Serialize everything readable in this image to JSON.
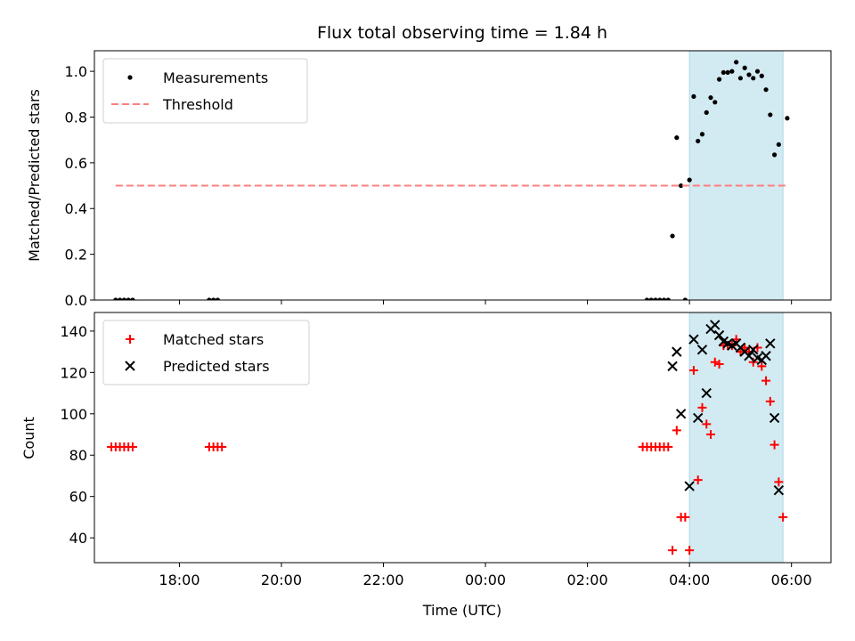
{
  "chart_data": [
    {
      "type": "scatter",
      "title": "Flux total observing time = 1.84 h",
      "xlabel": "",
      "ylabel": "Matched/Predicted stars",
      "ylim": [
        0,
        1.09
      ],
      "yticks": [
        0.0,
        0.2,
        0.4,
        0.6,
        0.8,
        1.0
      ],
      "ytick_labels": [
        "0.0",
        "0.2",
        "0.4",
        "0.6",
        "0.8",
        "1.0"
      ],
      "shaded_interval": [
        "04:00",
        "05:50"
      ],
      "shade_color": "#add8e6",
      "legend_position": "upper-left",
      "series": [
        {
          "name": "Measurements",
          "marker": "dot",
          "color": "#000000",
          "points": [
            [
              "16:45",
              0
            ],
            [
              "16:50",
              0
            ],
            [
              "16:55",
              0
            ],
            [
              "17:00",
              0
            ],
            [
              "17:05",
              0
            ],
            [
              "18:35",
              0
            ],
            [
              "18:40",
              0
            ],
            [
              "18:45",
              0
            ],
            [
              "03:10",
              0
            ],
            [
              "03:15",
              0
            ],
            [
              "03:20",
              0
            ],
            [
              "03:25",
              0
            ],
            [
              "03:30",
              0
            ],
            [
              "03:35",
              0
            ],
            [
              "03:40",
              0.28
            ],
            [
              "03:45",
              0.71
            ],
            [
              "03:50",
              0.5
            ],
            [
              "03:55",
              0.0
            ],
            [
              "04:00",
              0.525
            ],
            [
              "04:05",
              0.89
            ],
            [
              "04:10",
              0.695
            ],
            [
              "04:15",
              0.725
            ],
            [
              "04:20",
              0.82
            ],
            [
              "04:25",
              0.885
            ],
            [
              "04:30",
              0.865
            ],
            [
              "04:35",
              0.965
            ],
            [
              "04:40",
              0.995
            ],
            [
              "04:45",
              0.995
            ],
            [
              "04:50",
              1.0
            ],
            [
              "04:55",
              1.04
            ],
            [
              "05:00",
              0.97
            ],
            [
              "05:05",
              1.015
            ],
            [
              "05:10",
              0.985
            ],
            [
              "05:15",
              0.97
            ],
            [
              "05:20",
              1.0
            ],
            [
              "05:25",
              0.98
            ],
            [
              "05:30",
              0.92
            ],
            [
              "05:35",
              0.81
            ],
            [
              "05:40",
              0.635
            ],
            [
              "05:45",
              0.68
            ],
            [
              "05:55",
              0.795
            ]
          ]
        },
        {
          "name": "Threshold",
          "marker": "dashed-line",
          "color": "#ff7f7f",
          "points": [
            [
              "16:45",
              0.5
            ],
            [
              "05:55",
              0.5
            ]
          ]
        }
      ]
    },
    {
      "type": "scatter",
      "title": "",
      "xlabel": "Time (UTC)",
      "ylabel": "Count",
      "ylim": [
        28,
        149
      ],
      "yticks": [
        40,
        60,
        80,
        100,
        120,
        140
      ],
      "ytick_labels": [
        "40",
        "60",
        "80",
        "100",
        "120",
        "140"
      ],
      "x_range": [
        "16:20",
        "06:25"
      ],
      "xticks": [
        "18:00",
        "20:00",
        "22:00",
        "00:00",
        "02:00",
        "04:00",
        "06:00"
      ],
      "shaded_interval": [
        "04:00",
        "05:50"
      ],
      "shade_color": "#add8e6",
      "legend_position": "upper-left",
      "series": [
        {
          "name": "Matched stars",
          "marker": "plus",
          "color": "#ff0000",
          "points": [
            [
              "16:40",
              84
            ],
            [
              "16:45",
              84
            ],
            [
              "16:50",
              84
            ],
            [
              "16:55",
              84
            ],
            [
              "17:00",
              84
            ],
            [
              "17:05",
              84
            ],
            [
              "18:35",
              84
            ],
            [
              "18:40",
              84
            ],
            [
              "18:45",
              84
            ],
            [
              "18:50",
              84
            ],
            [
              "03:05",
              84
            ],
            [
              "03:10",
              84
            ],
            [
              "03:15",
              84
            ],
            [
              "03:20",
              84
            ],
            [
              "03:25",
              84
            ],
            [
              "03:30",
              84
            ],
            [
              "03:35",
              84
            ],
            [
              "03:40",
              34
            ],
            [
              "03:45",
              92
            ],
            [
              "03:50",
              50
            ],
            [
              "03:55",
              50
            ],
            [
              "04:00",
              34
            ],
            [
              "04:05",
              121
            ],
            [
              "04:10",
              68
            ],
            [
              "04:15",
              103
            ],
            [
              "04:20",
              95
            ],
            [
              "04:25",
              90
            ],
            [
              "04:30",
              125
            ],
            [
              "04:35",
              124
            ],
            [
              "04:40",
              133
            ],
            [
              "04:45",
              133
            ],
            [
              "04:50",
              133
            ],
            [
              "04:55",
              136
            ],
            [
              "05:00",
              130
            ],
            [
              "05:05",
              132
            ],
            [
              "05:10",
              130
            ],
            [
              "05:15",
              125
            ],
            [
              "05:20",
              132
            ],
            [
              "05:25",
              123
            ],
            [
              "05:30",
              116
            ],
            [
              "05:35",
              106
            ],
            [
              "05:40",
              85
            ],
            [
              "05:45",
              67
            ],
            [
              "05:50",
              50
            ]
          ]
        },
        {
          "name": "Predicted stars",
          "marker": "x",
          "color": "#000000",
          "points": [
            [
              "03:40",
              123
            ],
            [
              "03:45",
              130
            ],
            [
              "03:50",
              100
            ],
            [
              "04:00",
              65
            ],
            [
              "04:05",
              136
            ],
            [
              "04:10",
              98
            ],
            [
              "04:15",
              131
            ],
            [
              "04:20",
              110
            ],
            [
              "04:25",
              141
            ],
            [
              "04:30",
              143
            ],
            [
              "04:35",
              138
            ],
            [
              "04:40",
              135
            ],
            [
              "04:45",
              134
            ],
            [
              "04:50",
              133
            ],
            [
              "04:55",
              134
            ],
            [
              "05:00",
              132
            ],
            [
              "05:05",
              130
            ],
            [
              "05:10",
              128
            ],
            [
              "05:15",
              131
            ],
            [
              "05:20",
              127
            ],
            [
              "05:25",
              126
            ],
            [
              "05:30",
              128
            ],
            [
              "05:35",
              134
            ],
            [
              "05:40",
              98
            ],
            [
              "05:45",
              63
            ]
          ]
        }
      ]
    }
  ]
}
